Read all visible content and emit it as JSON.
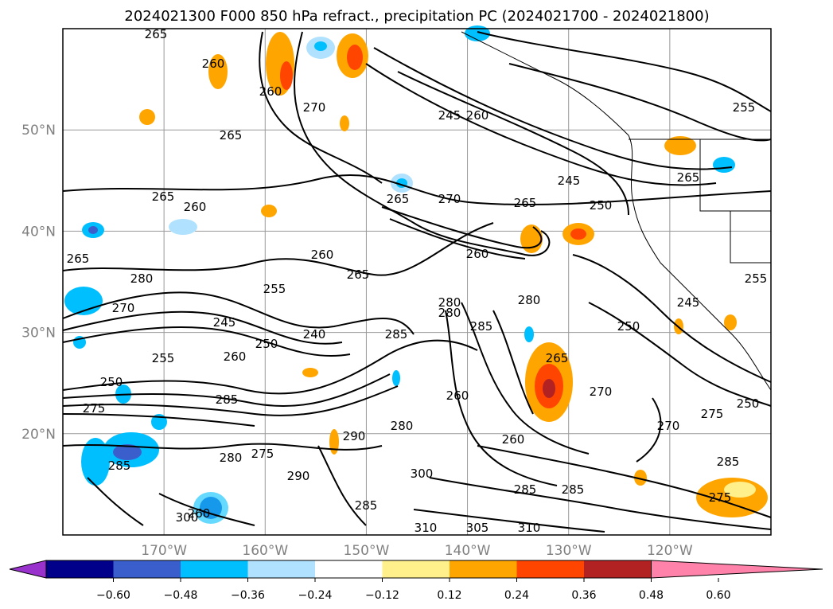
{
  "title": "2024021300 F000 850 hPa refract., precipitation PC (2024021700 - 2024021800)",
  "map": {
    "lon_range": [
      -180,
      -110
    ],
    "lat_range": [
      10,
      60
    ],
    "lat_labels": [
      "50°N",
      "40°N",
      "30°N",
      "20°N"
    ],
    "lon_labels": [
      "170°W",
      "160°W",
      "150°W",
      "140°W",
      "130°W",
      "120°W"
    ],
    "grid": true
  },
  "contour_labels": [
    "265",
    "260",
    "270",
    "245",
    "260",
    "265",
    "260",
    "255",
    "265",
    "265",
    "260",
    "245",
    "265",
    "270",
    "265",
    "250",
    "265",
    "280",
    "260",
    "265",
    "255",
    "260",
    "280",
    "270",
    "245",
    "240",
    "250",
    "260",
    "255",
    "285",
    "285",
    "280",
    "280",
    "265",
    "250",
    "250",
    "285",
    "275",
    "260",
    "270",
    "270",
    "290",
    "280",
    "260",
    "275",
    "285",
    "285",
    "290",
    "300",
    "285",
    "275",
    "280",
    "260",
    "285",
    "285",
    "300",
    "310",
    "305",
    "310",
    "275",
    "255",
    "245",
    "250"
  ],
  "colorbar": {
    "ticks": [
      "−0.60",
      "−0.48",
      "−0.36",
      "−0.24",
      "−0.12",
      "0.12",
      "0.24",
      "0.36",
      "0.48",
      "0.60"
    ],
    "colors": [
      "#9932cc",
      "#00008b",
      "#3a5fcd",
      "#00bfff",
      "#b0e2ff",
      "#ffffff",
      "#fff08c",
      "#ffa500",
      "#ff4500",
      "#b22222",
      "#ff82ab"
    ],
    "extend": "both"
  }
}
